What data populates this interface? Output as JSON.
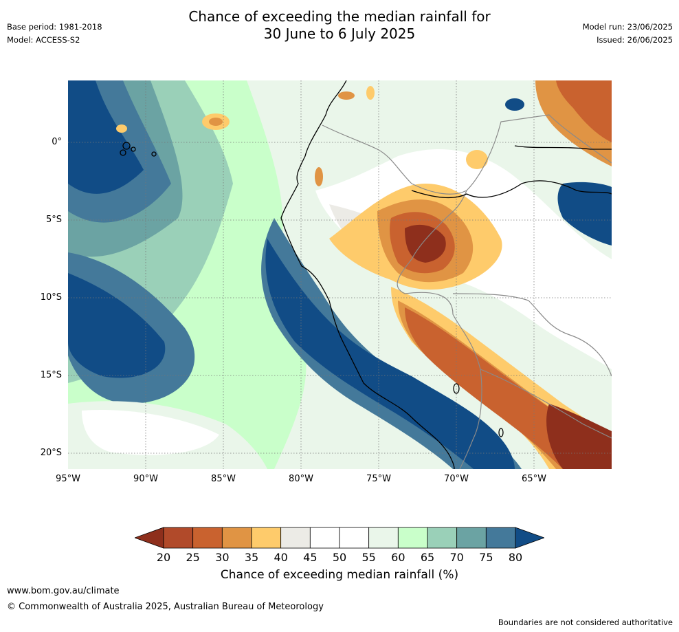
{
  "title_line1": "Chance of exceeding the median rainfall for",
  "title_line2": "30 June to 6 July 2025",
  "base_period": "Base period: 1981-2018",
  "model": "Model: ACCESS-S2",
  "model_run": "Model run: 23/06/2025",
  "issued": "Issued: 26/06/2025",
  "lat_labels": [
    "0°",
    "5°S",
    "10°S",
    "15°S",
    "20°S"
  ],
  "lon_labels": [
    "95°W",
    "90°W",
    "85°W",
    "80°W",
    "75°W",
    "70°W",
    "65°W"
  ],
  "colorbar": {
    "ticks": [
      "20",
      "25",
      "30",
      "35",
      "40",
      "45",
      "50",
      "55",
      "60",
      "65",
      "70",
      "75",
      "80"
    ],
    "colors": [
      "#8e2f1c",
      "#b14a2a",
      "#c9622f",
      "#e09444",
      "#fecb6b",
      "#ecebe6",
      "#ffffff",
      "#ffffff",
      "#eaf6ea",
      "#c9ffca",
      "#9ad0b8",
      "#6ba3a3",
      "#44799a",
      "#114c86"
    ],
    "label": "Chance of exceeding median rainfall (%)"
  },
  "website": "www.bom.gov.au/climate",
  "copyright": "© Commonwealth of Australia 2025, Australian Bureau of Meteorology",
  "disclaimer": "Boundaries are not considered authoritative"
}
